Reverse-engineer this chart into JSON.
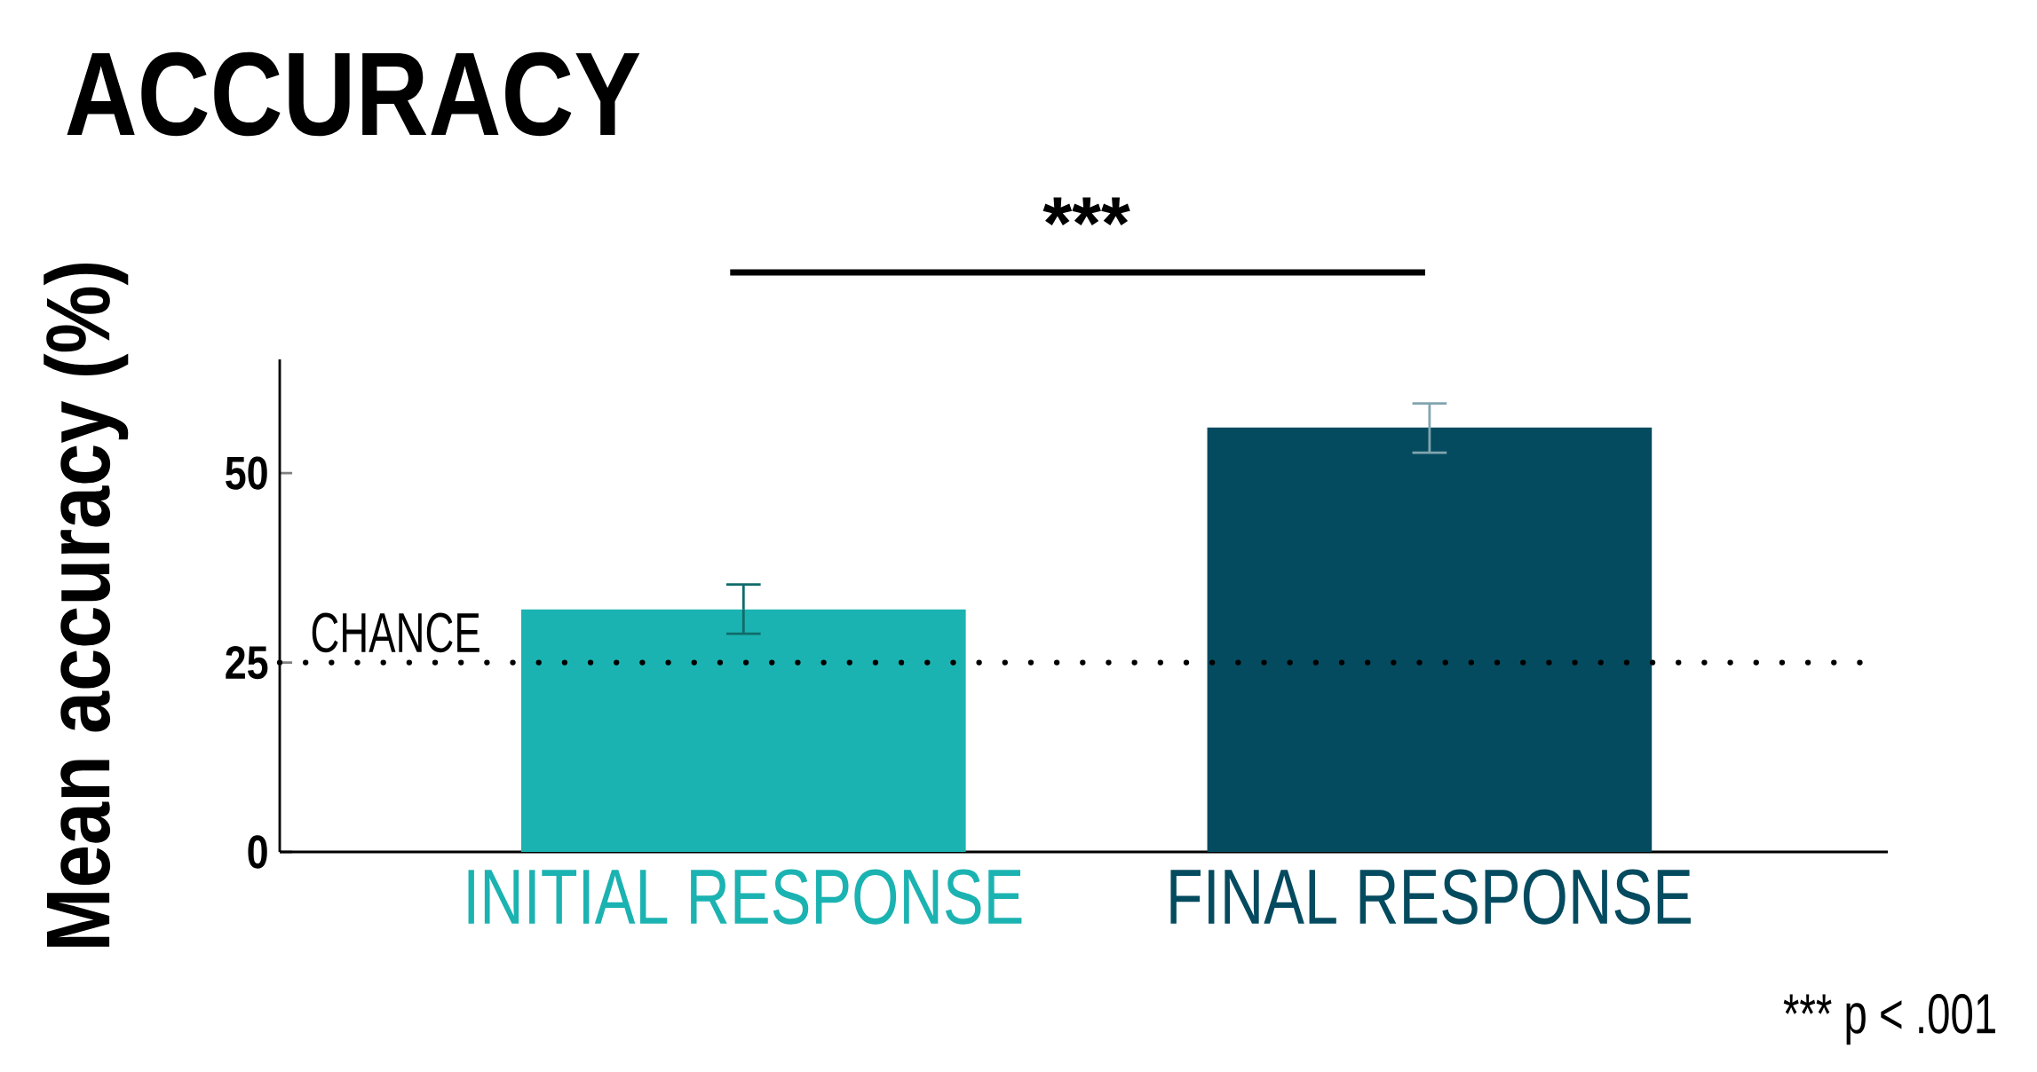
{
  "chart_data": {
    "type": "bar",
    "title": "ACCURACY",
    "ylabel": "Mean accuracy (%)",
    "categories": [
      "INITIAL RESPONSE",
      "FINAL RESPONSE"
    ],
    "values": [
      32.0,
      56.0
    ],
    "colors": [
      "#1bb3b1",
      "#054b5f"
    ],
    "errors": [
      [
        28.8,
        35.3
      ],
      [
        52.7,
        59.2
      ]
    ],
    "ylim": [
      0,
      65
    ],
    "yticks": [
      0,
      25,
      50
    ],
    "ref_lines": [
      {
        "axis": "y",
        "value": 25,
        "label": "CHANCE",
        "line_style": "dotted"
      }
    ],
    "annotations": [
      "***",
      "*** p < .001"
    ]
  }
}
